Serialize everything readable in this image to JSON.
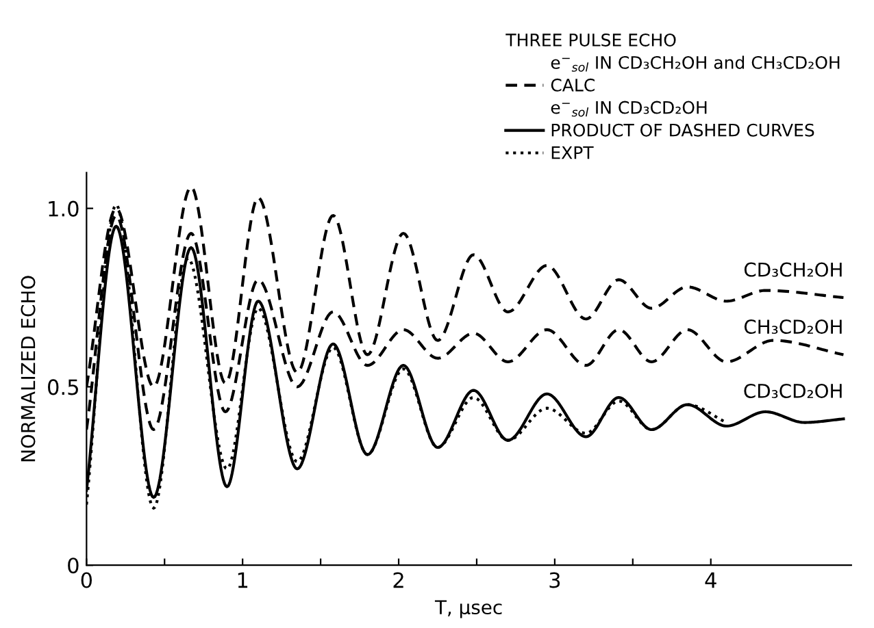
{
  "chart_data": {
    "type": "line",
    "xlabel": "T, μsec",
    "ylabel": "NORMALIZED ECHO",
    "xlim": [
      0,
      4.9
    ],
    "ylim": [
      0,
      1.1
    ],
    "xticks": [
      0,
      {
        "value": 0.5,
        "label": null
      },
      1,
      {
        "value": 1.5,
        "label": null
      },
      2,
      {
        "value": 2.5,
        "label": null
      },
      3,
      {
        "value": 3.5,
        "label": null
      },
      4
    ],
    "yticks": [
      0,
      {
        "value": 0.5,
        "label": "0.5"
      },
      {
        "value": 1.0,
        "label": "1.0"
      }
    ],
    "grid": false,
    "legend": "top right",
    "marker": "none",
    "legend_title": "THREE PULSE ECHO",
    "annotations": [
      "e$^{−}$$_{sol}$ IN CD₃CH₂OH and CH₃CD₂OH",
      "CALC",
      "e$^{−}$$_{sol}$ IN CD₃CD₂OH",
      "PRODUCT OF DASHED CURVES"
    ],
    "series": [
      {
        "name": "CD₃CH₂OH",
        "color": "#000000",
        "line_style": "dashed",
        "x": [
          0,
          0.19,
          0.43,
          0.67,
          0.89,
          1.1,
          1.35,
          1.58,
          1.8,
          2.03,
          2.25,
          2.48,
          2.7,
          2.95,
          3.2,
          3.41,
          3.62,
          3.85,
          4.1,
          4.35,
          4.85
        ],
        "values": [
          0.5,
          1.0,
          0.5,
          1.06,
          0.51,
          1.03,
          0.54,
          0.98,
          0.59,
          0.93,
          0.63,
          0.87,
          0.71,
          0.84,
          0.69,
          0.8,
          0.72,
          0.78,
          0.74,
          0.77,
          0.75
        ]
      },
      {
        "name": "CH₃CD₂OH",
        "color": "#000000",
        "line_style": "dashed",
        "x": [
          0,
          0.19,
          0.43,
          0.67,
          0.89,
          1.1,
          1.35,
          1.58,
          1.8,
          2.03,
          2.25,
          2.48,
          2.7,
          2.95,
          3.2,
          3.41,
          3.62,
          3.85,
          4.1,
          4.4,
          4.85
        ],
        "values": [
          0.38,
          0.98,
          0.38,
          0.93,
          0.43,
          0.8,
          0.5,
          0.71,
          0.56,
          0.66,
          0.58,
          0.65,
          0.57,
          0.66,
          0.56,
          0.66,
          0.57,
          0.66,
          0.57,
          0.63,
          0.59
        ]
      },
      {
        "name": "CD₃CD₂OH",
        "color": "#000000",
        "line_style": "solid",
        "x": [
          0,
          0.19,
          0.43,
          0.67,
          0.9,
          1.1,
          1.35,
          1.58,
          1.8,
          2.03,
          2.25,
          2.48,
          2.7,
          2.95,
          3.2,
          3.41,
          3.62,
          3.85,
          4.1,
          4.35,
          4.6,
          4.85
        ],
        "values": [
          0.21,
          0.95,
          0.19,
          0.89,
          0.22,
          0.74,
          0.27,
          0.62,
          0.31,
          0.56,
          0.33,
          0.49,
          0.35,
          0.48,
          0.36,
          0.47,
          0.38,
          0.45,
          0.39,
          0.43,
          0.4,
          0.41
        ]
      },
      {
        "name": "EXPT",
        "color": "#000000",
        "line_style": "dotted",
        "x": [
          0,
          0.19,
          0.43,
          0.65,
          0.9,
          1.1,
          1.35,
          1.58,
          1.8,
          2.03,
          2.25,
          2.48,
          2.7,
          2.95,
          3.2,
          3.41,
          3.62,
          3.85,
          4.1
        ],
        "values": [
          0.17,
          1.01,
          0.16,
          0.86,
          0.27,
          0.72,
          0.29,
          0.61,
          0.31,
          0.55,
          0.33,
          0.47,
          0.35,
          0.44,
          0.37,
          0.46,
          0.38,
          0.45,
          0.4
        ]
      }
    ]
  }
}
